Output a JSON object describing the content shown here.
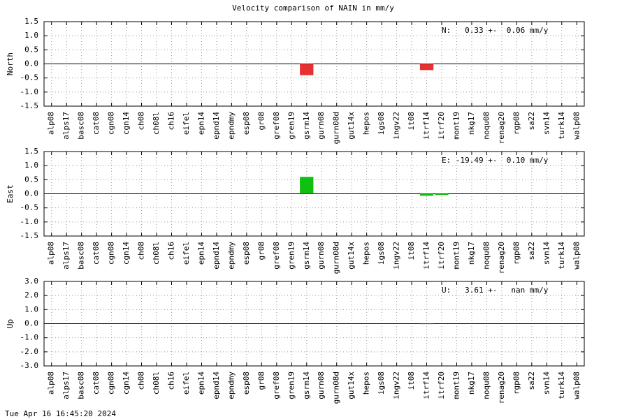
{
  "title": "Velocity comparison of NAIN in mm/y",
  "timestamp": "Tue Apr 16 16:45:20 2024",
  "chart_data": [
    {
      "type": "bar",
      "ylabel": "North",
      "annotation": "N:   0.33 +-  0.06 mm/y",
      "color": "#e83030",
      "grid": true,
      "categories": [
        "alp08",
        "alps17",
        "basc08",
        "cat08",
        "cgn08",
        "cgn14",
        "ch08",
        "ch08l",
        "ch16",
        "eifel",
        "epn14",
        "epnd14",
        "epndmy",
        "esp08",
        "gr08",
        "gref08",
        "gren19",
        "gsrm14",
        "gurn08",
        "gurn08d",
        "gut14x",
        "hepos",
        "igs08",
        "ingv22",
        "it08",
        "itrf14",
        "itrf20",
        "mont19",
        "nkg17",
        "noqu08",
        "renag20",
        "rgp08",
        "sa22",
        "svn14",
        "turk14",
        "walp08"
      ],
      "values": [
        0,
        0,
        0,
        0,
        0,
        0,
        0,
        0,
        0,
        0,
        0,
        0,
        0,
        0,
        0,
        0,
        0,
        -0.4,
        0,
        0,
        0,
        0,
        0,
        0,
        0,
        -0.22,
        0,
        0,
        0,
        0,
        0,
        0,
        0,
        0,
        0,
        0
      ],
      "ylim": [
        -1.5,
        1.5
      ],
      "yticks": [
        -1.5,
        {
          "value": -1,
          "label": "-1.0"
        },
        -0.5,
        {
          "value": 0,
          "label": "0.0"
        },
        0.5,
        {
          "value": 1,
          "label": "1.0"
        },
        1.5
      ]
    },
    {
      "type": "bar",
      "ylabel": "East",
      "annotation": "E: -19.49 +-  0.10 mm/y",
      "color": "#10c010",
      "grid": true,
      "categories": [
        "alp08",
        "alps17",
        "basc08",
        "cat08",
        "cgn08",
        "cgn14",
        "ch08",
        "ch08l",
        "ch16",
        "eifel",
        "epn14",
        "epnd14",
        "epndmy",
        "esp08",
        "gr08",
        "gref08",
        "gren19",
        "gsrm14",
        "gurn08",
        "gurn08d",
        "gut14x",
        "hepos",
        "igs08",
        "ingv22",
        "it08",
        "itrf14",
        "itrf20",
        "mont19",
        "nkg17",
        "noqu08",
        "renag20",
        "rgp08",
        "sa22",
        "svn14",
        "turk14",
        "walp08"
      ],
      "values": [
        0,
        0,
        0,
        0,
        0,
        0,
        0,
        0,
        0,
        0,
        0,
        0,
        0,
        0,
        0,
        0,
        0,
        0.6,
        0,
        0,
        0,
        0,
        0,
        0,
        0,
        -0.07,
        -0.04,
        0,
        0,
        0,
        0,
        0,
        0,
        0,
        0,
        0
      ],
      "ylim": [
        -1.5,
        1.5
      ],
      "yticks": [
        -1.5,
        {
          "value": -1,
          "label": "-1.0"
        },
        -0.5,
        {
          "value": 0,
          "label": "0.0"
        },
        0.5,
        {
          "value": 1,
          "label": "1.0"
        },
        1.5
      ]
    },
    {
      "type": "bar",
      "ylabel": "Up",
      "annotation": "U:   3.61 +-   nan mm/y",
      "color": "#1060c0",
      "grid": true,
      "categories": [
        "alp08",
        "alps17",
        "basc08",
        "cat08",
        "cgn08",
        "cgn14",
        "ch08",
        "ch08l",
        "ch16",
        "eifel",
        "epn14",
        "epnd14",
        "epndmy",
        "esp08",
        "gr08",
        "gref08",
        "gren19",
        "gsrm14",
        "gurn08",
        "gurn08d",
        "gut14x",
        "hepos",
        "igs08",
        "ingv22",
        "it08",
        "itrf14",
        "itrf20",
        "mont19",
        "nkg17",
        "noqu08",
        "renag20",
        "rgp08",
        "sa22",
        "svn14",
        "turk14",
        "walp08"
      ],
      "values": [
        0,
        0,
        0,
        0,
        0,
        0,
        0,
        0,
        0,
        0,
        0,
        0,
        0,
        0,
        0,
        0,
        0,
        0,
        0,
        0,
        0,
        0,
        0,
        0,
        0,
        -0.03,
        0,
        0,
        0,
        0,
        0,
        0,
        0,
        0,
        0,
        0
      ],
      "ylim": [
        -3,
        3
      ],
      "yticks": [
        {
          "value": -3,
          "label": "-3.0"
        },
        {
          "value": -2,
          "label": "-2.0"
        },
        {
          "value": -1,
          "label": "-1.0"
        },
        {
          "value": 0,
          "label": "0.0"
        },
        {
          "value": 1,
          "label": "1.0"
        },
        {
          "value": 2,
          "label": "2.0"
        },
        {
          "value": 3,
          "label": "3.0"
        }
      ]
    }
  ]
}
